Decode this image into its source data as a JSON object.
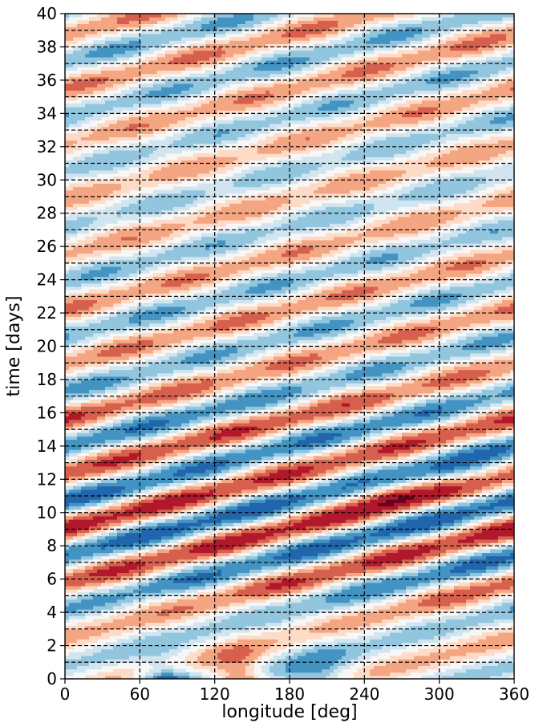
{
  "chart_data": {
    "type": "heatmap",
    "subtype": "filled contour (Hovmoller diagram)",
    "title": "",
    "xlabel": "longitude [deg]",
    "ylabel": "time [days]",
    "xlim": [
      0,
      360
    ],
    "ylim": [
      0,
      40
    ],
    "xticks": [
      0,
      60,
      120,
      180,
      240,
      300,
      360
    ],
    "yticks": [
      0,
      2,
      4,
      6,
      8,
      10,
      12,
      14,
      16,
      18,
      20,
      22,
      24,
      26,
      28,
      30,
      32,
      34,
      36,
      38,
      40
    ],
    "grid": {
      "style": "dashed",
      "color": "#000000",
      "vertical_lines_x": [
        60,
        120,
        180,
        240,
        300
      ],
      "horizontal_lines_every_days": 1
    },
    "colormap": "RdBu_r (diverging, red positive, blue negative)",
    "colors": {
      "dark_blue": "#053061",
      "blue": "#2166ac",
      "mid_blue": "#4393c3",
      "light_blue": "#92c5de",
      "pale_blue": "#d1e5f0",
      "neutral": "#f7f7f7",
      "pale_red": "#fddbc7",
      "light_red": "#f4a582",
      "mid_red": "#d6604d",
      "red": "#b2182b",
      "dark_red": "#67001f"
    },
    "bands": [
      {
        "sign": "negative",
        "x_start": 0,
        "x_end": 360,
        "t_start": 6.6,
        "t_end": 11.2,
        "strength": 0.95
      },
      {
        "sign": "positive",
        "x_start": 0,
        "x_end": 360,
        "t_start": 7.5,
        "t_end": 12.8,
        "strength": 0.95
      },
      {
        "sign": "negative",
        "x_start": 0,
        "x_end": 360,
        "t_start": 13.0,
        "t_end": 20.0,
        "strength": 0.7
      },
      {
        "sign": "positive",
        "x_start": 0,
        "x_end": 360,
        "t_start": 13.8,
        "t_end": 21.0,
        "strength": 0.7
      }
    ],
    "features": [
      {
        "sign": "negative",
        "x": 80,
        "t": 0.3,
        "strength": 1.0
      },
      {
        "sign": "positive",
        "x": 140,
        "t": 0.4,
        "strength": 0.8
      },
      {
        "sign": "negative",
        "x": 200,
        "t": 1.5,
        "strength": 0.6
      },
      {
        "sign": "positive",
        "x": 260,
        "t": 11.1,
        "strength": 0.9
      },
      {
        "sign": "negative",
        "x": 320,
        "t": 12.4,
        "strength": 0.8
      }
    ]
  }
}
